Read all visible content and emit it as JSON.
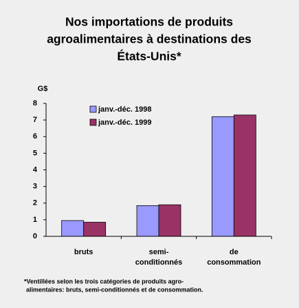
{
  "chart_data": {
    "type": "bar",
    "title": [
      "Nos importations de produits",
      "agroalimentaires à destinations des",
      "États-Unis*"
    ],
    "y_label": "G$",
    "categories": [
      [
        "bruts"
      ],
      [
        "semi-",
        "conditionnés"
      ],
      [
        "de",
        "consommation"
      ]
    ],
    "series": [
      {
        "name": "janv.-déc. 1998",
        "color": "#9999ff",
        "values": [
          0.95,
          1.85,
          7.2
        ]
      },
      {
        "name": "janv.-déc. 1999",
        "color": "#993366",
        "values": [
          0.85,
          1.9,
          7.3
        ]
      }
    ],
    "ylim": [
      0,
      8
    ],
    "yticks": [
      0,
      1,
      2,
      3,
      4,
      5,
      6,
      7,
      8
    ],
    "footnote": [
      "*Ventillées selon les trois catégories de produits agro-",
      "alimentaires: bruts, semi-conditionnés et de consommation."
    ]
  }
}
